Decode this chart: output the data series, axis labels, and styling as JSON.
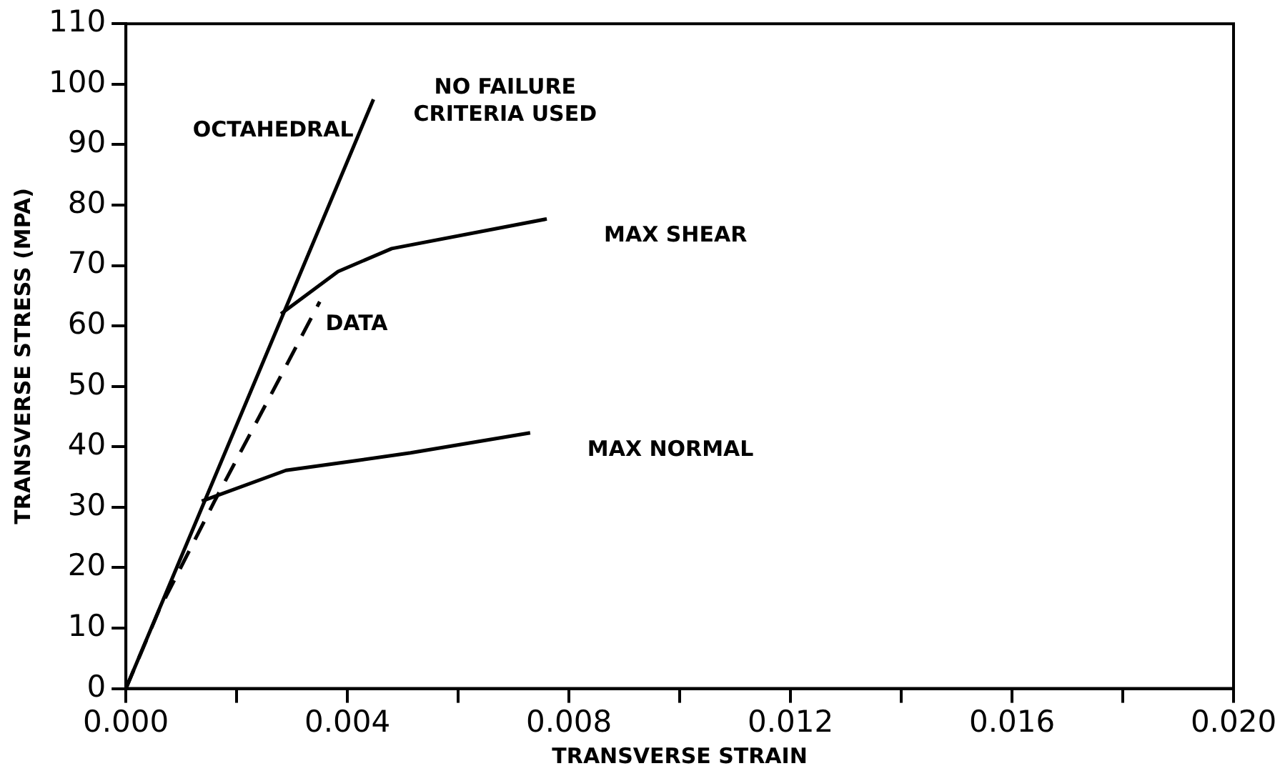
{
  "chart_data": {
    "type": "line",
    "xlabel": "TRANSVERSE STRAIN",
    "ylabel": "TRANSVERSE STRESS (MPA)",
    "xlim": [
      0,
      0.02
    ],
    "ylim": [
      0,
      110
    ],
    "xticks": [
      {
        "value": 0,
        "label": "0.000"
      },
      {
        "value": 0.002,
        "label": null
      },
      {
        "value": 0.004,
        "label": "0.004"
      },
      {
        "value": 0.006,
        "label": null
      },
      {
        "value": 0.008,
        "label": "0.008"
      },
      {
        "value": 0.01,
        "label": null
      },
      {
        "value": 0.012,
        "label": "0.012"
      },
      {
        "value": 0.014,
        "label": null
      },
      {
        "value": 0.016,
        "label": "0.016"
      },
      {
        "value": 0.018,
        "label": null
      },
      {
        "value": 0.02,
        "label": "0.020"
      }
    ],
    "yticks": [
      0,
      10,
      20,
      30,
      40,
      50,
      60,
      70,
      80,
      90,
      100,
      110
    ],
    "grid": false,
    "legend": false,
    "marker": "none",
    "series": [
      {
        "name": "OCTAHEDRAL",
        "color": "#000000",
        "line_style": "solid",
        "x": [
          0,
          0.00447
        ],
        "values": [
          0,
          97.5
        ]
      },
      {
        "name": "MAX SHEAR",
        "color": "#000000",
        "line_style": "solid",
        "x": [
          0.0028,
          0.00383,
          0.0048,
          0.0076
        ],
        "values": [
          62,
          69,
          72.8,
          77.7
        ]
      },
      {
        "name": "MAX NORMAL",
        "color": "#000000",
        "line_style": "solid",
        "x": [
          0.00137,
          0.00289,
          0.00415,
          0.00514,
          0.0073
        ],
        "values": [
          31,
          36.1,
          37.7,
          39,
          42.3
        ]
      },
      {
        "name": "DATA",
        "color": "#000000",
        "line_style": "dashed",
        "x": [
          0,
          0.0006,
          0.0016,
          0.00267,
          0.0035
        ],
        "values": [
          0,
          13,
          31,
          49.5,
          64
        ]
      }
    ],
    "annotations": [
      "NO FAILURE\nCRITERIA USED"
    ]
  }
}
